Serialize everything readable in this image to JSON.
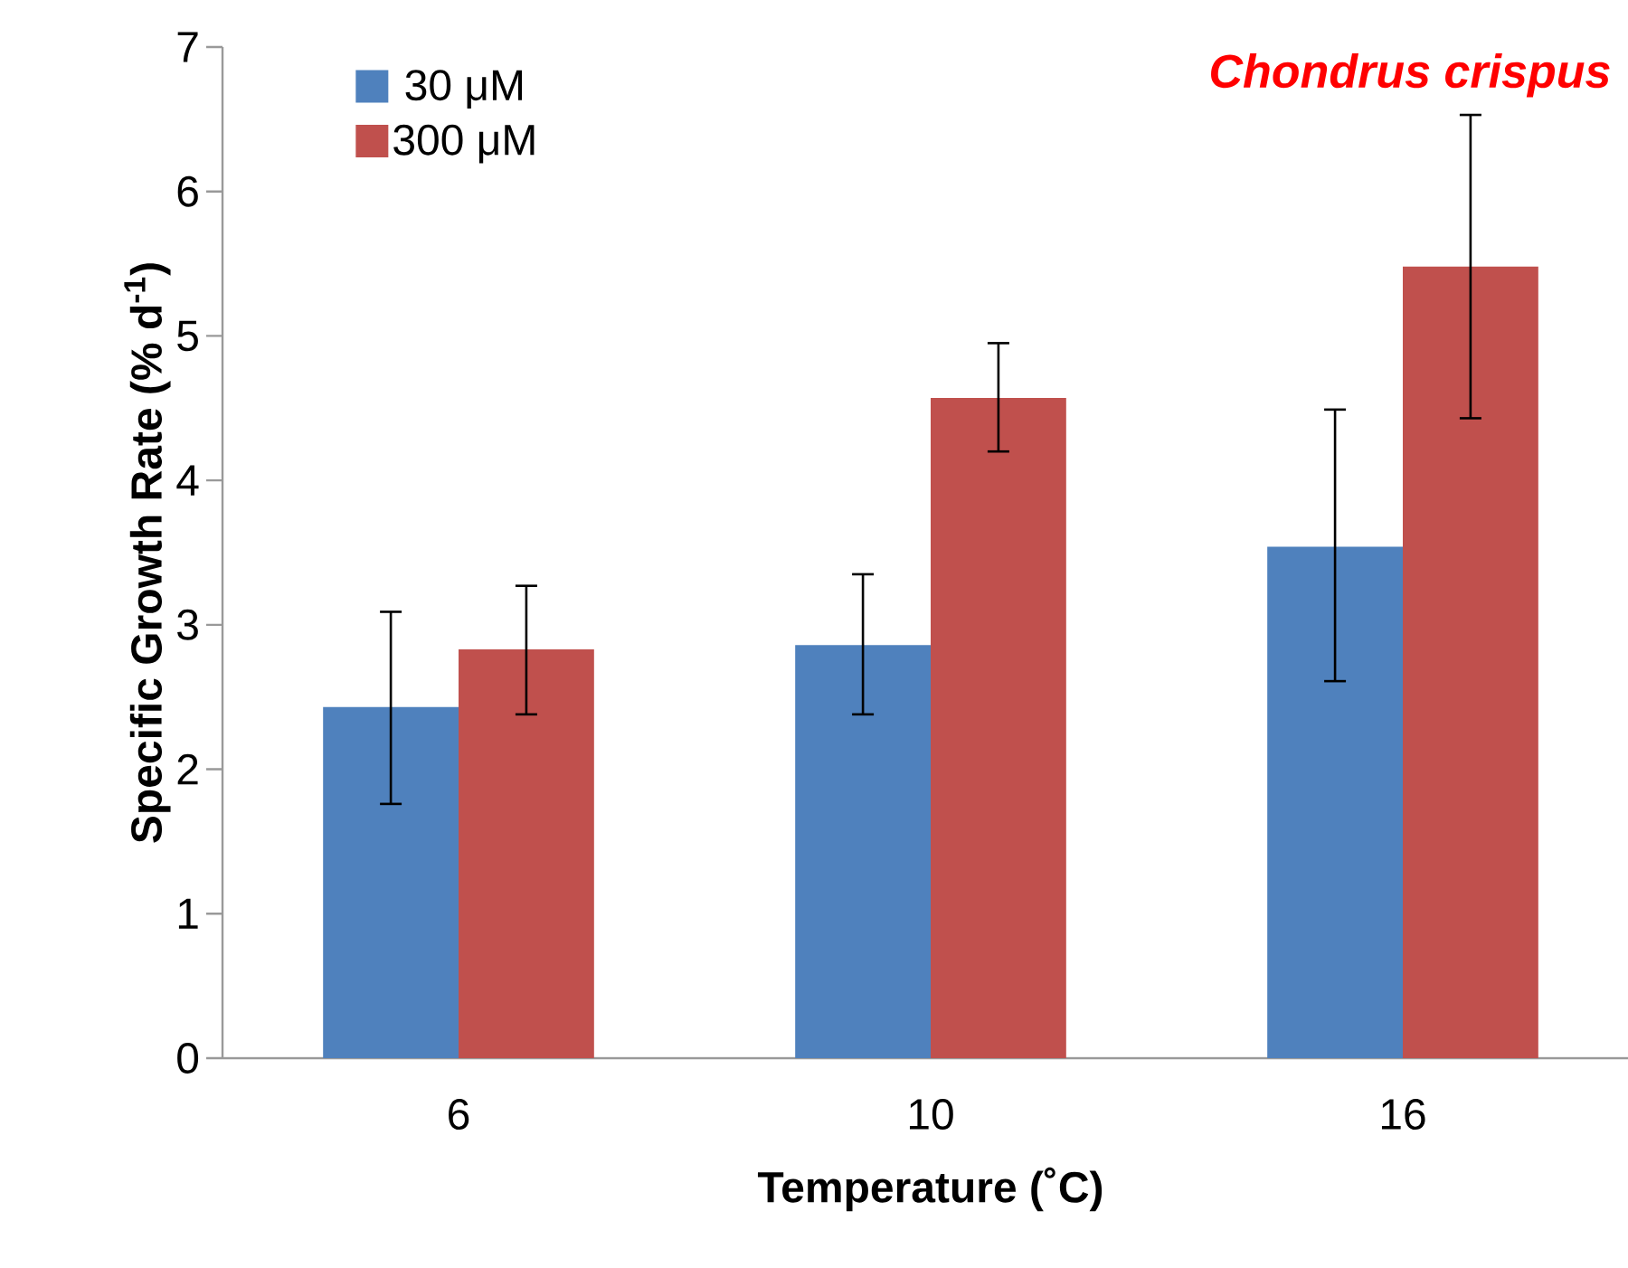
{
  "chart_data": {
    "type": "bar",
    "title": "Chondrus crispus",
    "xlabel": "Temperature (˚C)",
    "ylabel": "Specific Growth Rate (% d$^{-1}$)",
    "categories": [
      "6",
      "10",
      "16"
    ],
    "series": [
      {
        "name": "30 μM",
        "color": "#4f81bd",
        "values": [
          2.43,
          2.86,
          3.54
        ],
        "errors": [
          [
            1.76,
            3.09
          ],
          [
            2.38,
            3.35
          ],
          [
            2.61,
            4.49
          ]
        ]
      },
      {
        "name": "300 μM",
        "color": "#c0504d",
        "values": [
          2.83,
          4.57,
          5.48
        ],
        "errors": [
          [
            2.38,
            3.27
          ],
          [
            4.2,
            4.95
          ],
          [
            4.43,
            6.53
          ]
        ]
      }
    ],
    "ylim": [
      0,
      7
    ],
    "yticks": [
      0,
      1,
      2,
      3,
      4,
      5,
      6,
      7
    ],
    "grid": false,
    "legend": "top left"
  }
}
